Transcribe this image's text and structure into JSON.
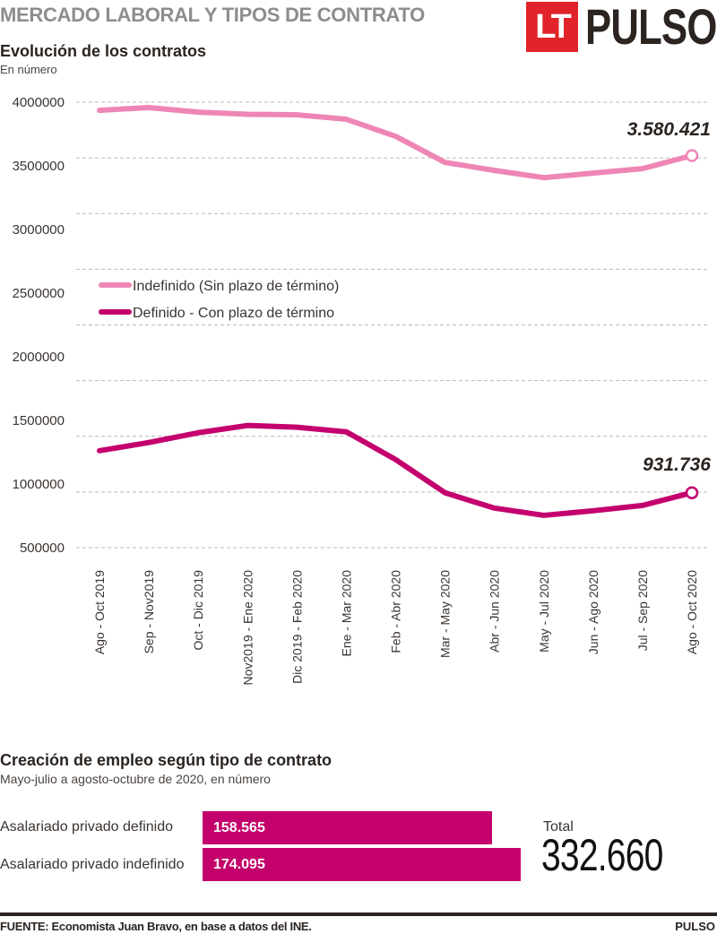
{
  "header": {
    "title": "MERCADO LABORAL  Y TIPOS DE CONTRATO",
    "logo_box": "LT",
    "logo_text": "PULSO",
    "logo_color": "#e0242a"
  },
  "chart1": {
    "title": "Evolución de los contratos",
    "subtitle": "En número"
  },
  "chart2": {
    "title": "Creación de empleo según tipo de contrato",
    "subtitle": "Mayo-julio a agosto-octubre de 2020, en número",
    "bars": [
      {
        "label": "Asalariado privado definido",
        "value": 158565,
        "value_label": "158.565"
      },
      {
        "label": "Asalariado privado indefinido",
        "value": 174095,
        "value_label": "174.095"
      }
    ],
    "total_label": "Total",
    "total_value": "332.660",
    "bar_color": "#c4006c"
  },
  "footer": {
    "source": "FUENTE: Economista Juan Bravo, en base a datos del INE.",
    "brand": "PULSO"
  },
  "chart_data": [
    {
      "type": "line",
      "title": "Evolución de los contratos",
      "subtitle": "En número",
      "xlabel": "",
      "ylabel": "",
      "categories": [
        "Ago - Oct 2019",
        "Sep - Nov2019",
        "Oct - Dic 2019",
        "Nov2019 - Ene 2020",
        "Dic 2019 - Feb 2020",
        "Ene - Mar 2020",
        "Feb - Abr 2020",
        "Mar - May 2020",
        "Abr - Jun 2020",
        "May - Jul 2020",
        "Jun - Ago 2020",
        "Jul - Sep 2020",
        "Ago - Oct 2020"
      ],
      "yticks": [
        4000000,
        3500000,
        3000000,
        2500000,
        2000000,
        1500000,
        1000000,
        500000
      ],
      "ylim": [
        500000,
        4000000
      ],
      "grid": true,
      "gridline_count": 9,
      "legend_position": "center-left",
      "series": [
        {
          "name": "Indefinido (Sin plazo de término)",
          "color": "#ee86b5",
          "values": [
            3936000,
            3958000,
            3922000,
            3905000,
            3901000,
            3866000,
            3732000,
            3527000,
            3464000,
            3407000,
            3443000,
            3478000,
            3580421
          ],
          "end_label": "3.580.421"
        },
        {
          "name": "Definido - Con plazo de término",
          "color": "#c4006e",
          "values": [
            1262000,
            1326000,
            1403000,
            1460000,
            1446000,
            1410000,
            1192000,
            931000,
            811000,
            754000,
            790000,
            832000,
            931736
          ],
          "end_label": "931.736"
        }
      ]
    },
    {
      "type": "bar",
      "orientation": "horizontal",
      "title": "Creación de empleo según tipo de contrato",
      "subtitle": "Mayo-julio a agosto-octubre de 2020, en número",
      "categories": [
        "Asalariado privado definido",
        "Asalariado privado indefinido"
      ],
      "values": [
        158565,
        174095
      ],
      "data_labels": [
        "158.565",
        "174.095"
      ],
      "total": 332660
    }
  ]
}
